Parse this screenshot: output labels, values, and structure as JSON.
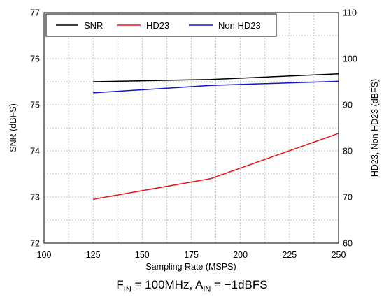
{
  "chart_data": {
    "type": "line",
    "x": [
      125,
      185,
      250
    ],
    "xlabel": "Sampling Rate (MSPS)",
    "xlim": [
      100,
      250
    ],
    "xticks": [
      100,
      125,
      150,
      175,
      200,
      225,
      250
    ],
    "ylabel_left": "SNR (dBFS)",
    "ylim_left": [
      72,
      77
    ],
    "yticks_left": [
      72,
      73,
      74,
      75,
      76,
      77
    ],
    "ylabel_right": "HD23, Non HD23 (dBFS)",
    "ylim_right": [
      60,
      110
    ],
    "yticks_right": [
      60,
      70,
      80,
      90,
      100,
      110
    ],
    "grid": true,
    "legend_position": "top-left",
    "series": [
      {
        "name": "SNR",
        "axis": "left",
        "color": "#000000",
        "values": [
          75.5,
          75.55,
          75.67
        ]
      },
      {
        "name": "HD23",
        "axis": "right",
        "color": "#e8141c",
        "values": [
          69.5,
          74.0,
          83.8
        ]
      },
      {
        "name": "Non HD23",
        "axis": "right",
        "color": "#1414c8",
        "values": [
          92.6,
          94.2,
          95.1
        ]
      }
    ]
  },
  "caption": {
    "f_main": "F",
    "f_sub": "IN",
    "f_value": " = 100MHz, A",
    "a_sub": "IN",
    "a_value": " = −1dBFS"
  }
}
